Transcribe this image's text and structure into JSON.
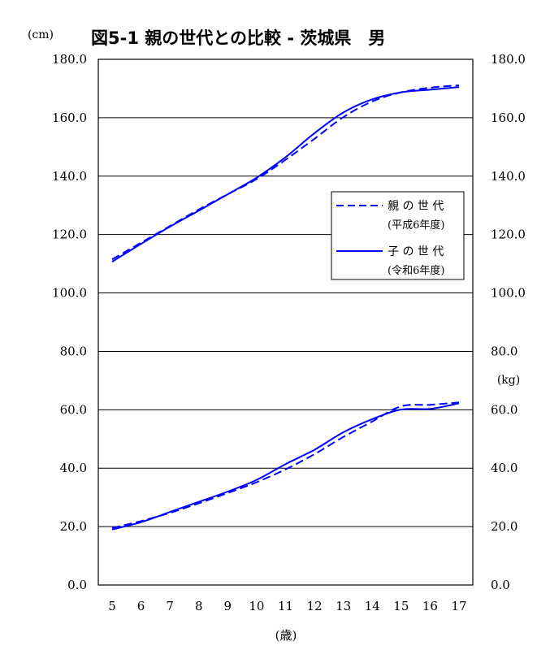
{
  "chart_data": {
    "type": "line",
    "title": "図5-1 親の世代との比較 - 茨城県　男",
    "left_unit": "(cm)",
    "right_unit": "(kg)",
    "xlabel": "(歳)",
    "x": [
      5,
      6,
      7,
      8,
      9,
      10,
      11,
      12,
      13,
      14,
      15,
      16,
      17
    ],
    "x_tick_labels": [
      "5",
      "6",
      "7",
      "8",
      "9",
      "10",
      "11",
      "12",
      "13",
      "14",
      "15",
      "16",
      "17"
    ],
    "ylim": [
      0,
      180
    ],
    "y_tick_labels": [
      "0.0",
      "20.0",
      "40.0",
      "60.0",
      "80.0",
      "100.0",
      "120.0",
      "140.0",
      "160.0",
      "180.0"
    ],
    "right_tick_labels": [
      "0.0",
      "20.0",
      "40.0",
      "60.0",
      "80.0",
      "100.0",
      "120.0",
      "140.0",
      "160.0",
      "180.0"
    ],
    "grid": true,
    "legend_position": "right",
    "series_color": "#0000ff",
    "legend": [
      {
        "name": "親 の 世 代",
        "sub": "(平成6年度)",
        "style": "dashed"
      },
      {
        "name": "子 の 世 代",
        "sub": "(令和6年度)",
        "style": "solid"
      }
    ],
    "series": [
      {
        "group": "height",
        "style": "dashed",
        "values": [
          111.5,
          117.2,
          122.9,
          128.6,
          133.8,
          139.0,
          145.6,
          152.8,
          160.2,
          165.6,
          168.7,
          170.3,
          171.1
        ]
      },
      {
        "group": "height",
        "style": "solid",
        "values": [
          110.7,
          116.8,
          122.7,
          128.2,
          133.8,
          139.5,
          146.5,
          154.7,
          161.8,
          166.3,
          168.7,
          169.6,
          170.5
        ]
      },
      {
        "group": "weight",
        "style": "dashed",
        "values": [
          19.5,
          21.9,
          24.7,
          28.0,
          31.5,
          35.2,
          39.6,
          44.8,
          50.7,
          56.0,
          61.2,
          61.7,
          62.5
        ]
      },
      {
        "group": "weight",
        "style": "solid",
        "values": [
          19.0,
          21.5,
          25.0,
          28.5,
          32.0,
          36.0,
          41.4,
          46.3,
          52.3,
          56.8,
          60.1,
          60.3,
          62.2
        ]
      }
    ]
  }
}
